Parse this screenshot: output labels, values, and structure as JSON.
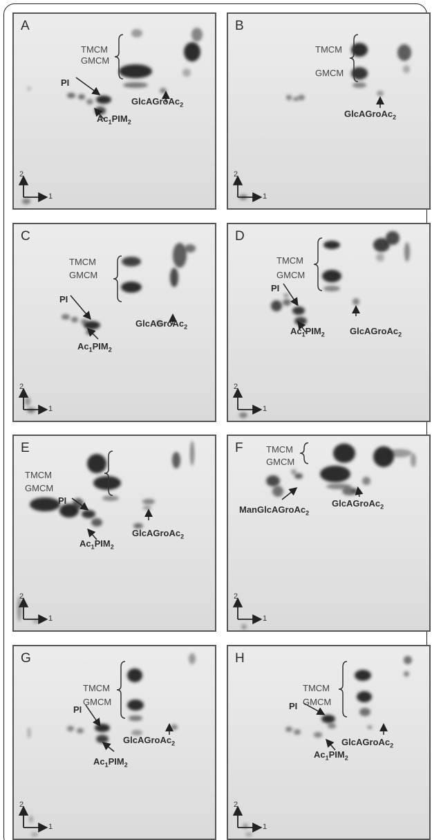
{
  "panel_letters": [
    "A",
    "B",
    "C",
    "D",
    "E",
    "F",
    "G",
    "H"
  ],
  "labels": {
    "tmcm": "TMCM",
    "gmcm": "GMCM",
    "pi": "PI",
    "ac1pim2_pre": "Ac",
    "ac1pim2_sub1": "1",
    "ac1pim2_mid": "PIM",
    "ac1pim2_sub2": "2",
    "glc_pre": "GlcAGroAc",
    "glc_sub": "2",
    "manglc_pre": "ManGlcAGroAc",
    "manglc_sub": "2"
  },
  "axes": {
    "dim1": "1",
    "dim2": "2"
  },
  "colors": {
    "spot": "#202020",
    "panel_bg": "#e5e5e5",
    "border": "#555555"
  }
}
